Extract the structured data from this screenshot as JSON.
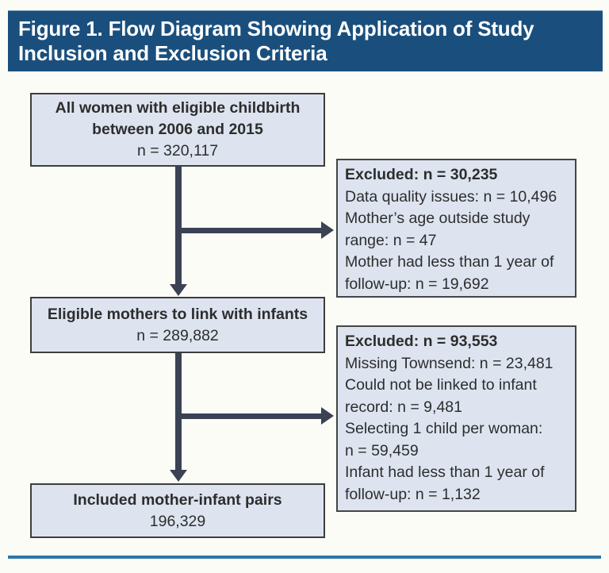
{
  "figure": {
    "title_line1": "Figure 1. Flow Diagram Showing Application of Study",
    "title_line2": "Inclusion and Exclusion Criteria"
  },
  "flow": {
    "main_boxes": [
      {
        "title_lines": [
          "All women with eligible childbirth",
          "between 2006 and 2015"
        ],
        "value": "n = 320,117"
      },
      {
        "title_lines": [
          "Eligible mothers to link with infants"
        ],
        "value": "n = 289,882"
      },
      {
        "title_lines": [
          "Included mother-infant pairs"
        ],
        "value": "196,329"
      }
    ],
    "exclusion_boxes": [
      {
        "title": "Excluded: n = 30,235",
        "items": [
          "Data quality issues: n = 10,496",
          "Mother’s age outside study range: n = 47",
          "Mother had less than 1 year of follow-up: n = 19,692"
        ]
      },
      {
        "title": "Excluded: n = 93,553",
        "items": [
          "Missing Townsend: n = 23,481",
          "Could not be linked to infant record: n = 9,481",
          "Selecting 1 child per woman: n = 59,459",
          "Infant had less than 1 year of follow-up: n = 1,132"
        ]
      }
    ]
  },
  "colors": {
    "header_bg": "#1a4f7d",
    "header_text": "#ffffff",
    "box_fill": "#dde4f0",
    "box_border": "#3d3d3d",
    "arrow": "#3a4254",
    "bottom_rule": "#2c78aa",
    "text": "#2d2d2d"
  }
}
